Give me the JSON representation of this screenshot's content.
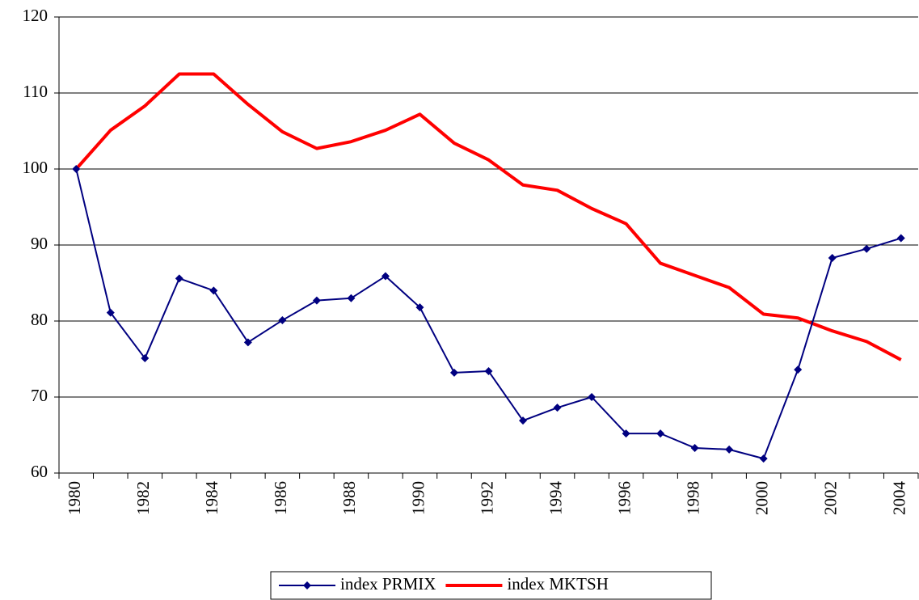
{
  "chart_data": {
    "type": "line",
    "categories": [
      "1980",
      null,
      "1982",
      null,
      "1984",
      null,
      "1986",
      null,
      "1988",
      null,
      "1990",
      null,
      "1992",
      null,
      "1994",
      null,
      "1996",
      null,
      "1998",
      null,
      "2000",
      null,
      "2002",
      null,
      "2004"
    ],
    "series": [
      {
        "name": "index PRMIX",
        "color": "#000080",
        "marker": "diamond",
        "values": [
          100,
          81.1,
          75.1,
          85.6,
          84.0,
          77.2,
          80.1,
          82.7,
          83.0,
          85.9,
          81.8,
          73.2,
          73.4,
          66.9,
          68.6,
          70.0,
          65.2,
          65.2,
          63.3,
          63.1,
          61.9,
          73.6,
          88.3,
          89.5,
          90.9
        ]
      },
      {
        "name": "index MKTSH",
        "color": "#ff0000",
        "values": [
          100,
          105.1,
          108.3,
          112.5,
          112.5,
          108.5,
          104.9,
          102.7,
          103.6,
          105.1,
          107.2,
          103.4,
          101.2,
          97.9,
          97.2,
          94.8,
          92.8,
          87.6,
          86.0,
          84.4,
          80.9,
          80.4,
          78.7,
          77.3,
          74.9
        ]
      }
    ],
    "ylim": [
      60,
      120
    ],
    "yticks": [
      60,
      70,
      80,
      90,
      100,
      110,
      120
    ],
    "grid": true,
    "legend": "bottom"
  }
}
